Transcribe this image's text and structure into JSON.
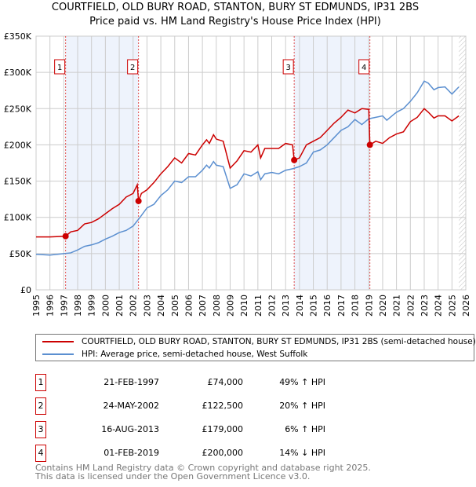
{
  "chart_data": {
    "type": "line",
    "title": "COURTFIELD, OLD BURY ROAD, STANTON, BURY ST EDMUNDS, IP31 2BS",
    "subtitle": "Price paid vs. HM Land Registry's House Price Index (HPI)",
    "xlim": [
      1995,
      2026
    ],
    "ylim": [
      0,
      350000
    ],
    "x_ticks": [
      "1995",
      "1996",
      "1997",
      "1998",
      "1999",
      "2000",
      "2001",
      "2002",
      "2003",
      "2004",
      "2005",
      "2006",
      "2007",
      "2008",
      "2009",
      "2010",
      "2011",
      "2012",
      "2013",
      "2014",
      "2015",
      "2016",
      "2017",
      "2018",
      "2019",
      "2020",
      "2021",
      "2022",
      "2023",
      "2024",
      "2025",
      "2026"
    ],
    "y_ticks": [
      {
        "v": 0,
        "label": "£0"
      },
      {
        "v": 50000,
        "label": "£50K"
      },
      {
        "v": 100000,
        "label": "£100K"
      },
      {
        "v": 150000,
        "label": "£150K"
      },
      {
        "v": 200000,
        "label": "£200K"
      },
      {
        "v": 250000,
        "label": "£250K"
      },
      {
        "v": 300000,
        "label": "£300K"
      },
      {
        "v": 350000,
        "label": "£350K"
      }
    ],
    "grid": true,
    "forecast_hatch_from": 2025.5,
    "series": [
      {
        "name": "COURTFIELD, OLD BURY ROAD, STANTON, BURY ST EDMUNDS, IP31 2BS (semi-detached house)",
        "color": "#cc0000",
        "points": [
          [
            1995,
            73000
          ],
          [
            1996,
            73000
          ],
          [
            1997.13,
            74000
          ],
          [
            1997.5,
            80000
          ],
          [
            1998,
            82000
          ],
          [
            1998.5,
            91000
          ],
          [
            1999,
            93000
          ],
          [
            1999.5,
            98000
          ],
          [
            2000,
            105000
          ],
          [
            2000.5,
            112000
          ],
          [
            2001,
            118000
          ],
          [
            2001.5,
            128000
          ],
          [
            2002,
            133000
          ],
          [
            2002.3,
            145000
          ],
          [
            2002.39,
            122500
          ],
          [
            2002.6,
            133000
          ],
          [
            2003,
            138000
          ],
          [
            2003.5,
            148000
          ],
          [
            2004,
            160000
          ],
          [
            2004.5,
            170000
          ],
          [
            2005,
            182000
          ],
          [
            2005.5,
            175000
          ],
          [
            2006,
            188000
          ],
          [
            2006.5,
            186000
          ],
          [
            2007,
            200000
          ],
          [
            2007.3,
            207000
          ],
          [
            2007.5,
            202000
          ],
          [
            2007.8,
            214000
          ],
          [
            2008,
            208000
          ],
          [
            2008.5,
            205000
          ],
          [
            2009,
            168000
          ],
          [
            2009.5,
            178000
          ],
          [
            2010,
            192000
          ],
          [
            2010.5,
            190000
          ],
          [
            2011,
            200000
          ],
          [
            2011.2,
            182000
          ],
          [
            2011.5,
            195000
          ],
          [
            2012,
            195000
          ],
          [
            2012.5,
            195000
          ],
          [
            2013,
            202000
          ],
          [
            2013.5,
            200000
          ],
          [
            2013.62,
            179000
          ],
          [
            2014,
            182000
          ],
          [
            2014.5,
            200000
          ],
          [
            2015,
            205000
          ],
          [
            2015.5,
            210000
          ],
          [
            2016,
            220000
          ],
          [
            2016.5,
            230000
          ],
          [
            2017,
            238000
          ],
          [
            2017.5,
            248000
          ],
          [
            2018,
            244000
          ],
          [
            2018.5,
            250000
          ],
          [
            2019,
            249000
          ],
          [
            2019.08,
            200000
          ],
          [
            2019.5,
            205000
          ],
          [
            2020,
            202000
          ],
          [
            2020.5,
            210000
          ],
          [
            2021,
            215000
          ],
          [
            2021.5,
            218000
          ],
          [
            2022,
            232000
          ],
          [
            2022.5,
            238000
          ],
          [
            2023,
            250000
          ],
          [
            2023.3,
            245000
          ],
          [
            2023.7,
            237000
          ],
          [
            2024,
            240000
          ],
          [
            2024.5,
            240000
          ],
          [
            2025,
            233000
          ],
          [
            2025.5,
            240000
          ]
        ]
      },
      {
        "name": "HPI: Average price, semi-detached house, West Suffolk",
        "color": "#5b8fd0",
        "points": [
          [
            1995,
            49000
          ],
          [
            1996,
            48000
          ],
          [
            1997,
            50000
          ],
          [
            1997.5,
            51000
          ],
          [
            1998,
            55000
          ],
          [
            1998.5,
            60000
          ],
          [
            1999,
            62000
          ],
          [
            1999.5,
            65000
          ],
          [
            2000,
            70000
          ],
          [
            2000.5,
            74000
          ],
          [
            2001,
            79000
          ],
          [
            2001.5,
            82000
          ],
          [
            2002,
            88000
          ],
          [
            2002.5,
            100000
          ],
          [
            2003,
            113000
          ],
          [
            2003.5,
            118000
          ],
          [
            2004,
            130000
          ],
          [
            2004.5,
            138000
          ],
          [
            2005,
            150000
          ],
          [
            2005.5,
            148000
          ],
          [
            2006,
            156000
          ],
          [
            2006.5,
            156000
          ],
          [
            2007,
            165000
          ],
          [
            2007.3,
            172000
          ],
          [
            2007.5,
            168000
          ],
          [
            2007.8,
            177000
          ],
          [
            2008,
            172000
          ],
          [
            2008.5,
            170000
          ],
          [
            2009,
            140000
          ],
          [
            2009.5,
            145000
          ],
          [
            2010,
            160000
          ],
          [
            2010.5,
            157000
          ],
          [
            2011,
            163000
          ],
          [
            2011.2,
            152000
          ],
          [
            2011.5,
            160000
          ],
          [
            2012,
            162000
          ],
          [
            2012.5,
            160000
          ],
          [
            2013,
            165000
          ],
          [
            2013.5,
            167000
          ],
          [
            2014,
            170000
          ],
          [
            2014.5,
            175000
          ],
          [
            2015,
            190000
          ],
          [
            2015.5,
            193000
          ],
          [
            2016,
            200000
          ],
          [
            2016.5,
            210000
          ],
          [
            2017,
            220000
          ],
          [
            2017.5,
            225000
          ],
          [
            2018,
            235000
          ],
          [
            2018.5,
            228000
          ],
          [
            2019,
            236000
          ],
          [
            2019.5,
            238000
          ],
          [
            2020,
            240000
          ],
          [
            2020.3,
            234000
          ],
          [
            2020.8,
            242000
          ],
          [
            2021,
            245000
          ],
          [
            2021.5,
            250000
          ],
          [
            2022,
            260000
          ],
          [
            2022.5,
            272000
          ],
          [
            2023,
            288000
          ],
          [
            2023.3,
            285000
          ],
          [
            2023.7,
            276000
          ],
          [
            2024,
            279000
          ],
          [
            2024.5,
            280000
          ],
          [
            2025,
            270000
          ],
          [
            2025.5,
            280000
          ]
        ]
      }
    ],
    "sales": [
      {
        "n": "1",
        "x": 1997.13,
        "price": 74000,
        "date": "21-FEB-1997",
        "price_label": "£74,000",
        "hpi": "49% ↑ HPI"
      },
      {
        "n": "2",
        "x": 2002.39,
        "price": 122500,
        "date": "24-MAY-2002",
        "price_label": "£122,500",
        "hpi": "20% ↑ HPI"
      },
      {
        "n": "3",
        "x": 2013.62,
        "price": 179000,
        "date": "16-AUG-2013",
        "price_label": "£179,000",
        "hpi": "6% ↑ HPI"
      },
      {
        "n": "4",
        "x": 2019.08,
        "price": 200000,
        "date": "01-FEB-2019",
        "price_label": "£200,000",
        "hpi": "14% ↓ HPI"
      }
    ]
  },
  "footer": {
    "line1": "Contains HM Land Registry data © Crown copyright and database right 2025.",
    "line2": "This data is licensed under the Open Government Licence v3.0."
  }
}
